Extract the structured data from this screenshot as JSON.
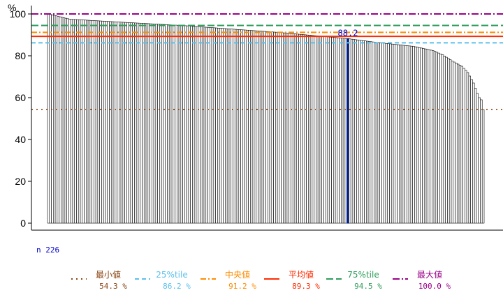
{
  "chart_data": {
    "type": "bar",
    "ylabel": "%",
    "ylim": [
      0,
      100
    ],
    "yticks": [
      0,
      20,
      40,
      60,
      80,
      100
    ],
    "n_label": "n 226",
    "n": 226,
    "sorted": "descending",
    "highlight": {
      "rank": 156,
      "value": 88.2,
      "label": "88.2"
    },
    "profile": [
      [
        1,
        100.0
      ],
      [
        12,
        97.5
      ],
      [
        40,
        96.0
      ],
      [
        70,
        94.5
      ],
      [
        100,
        92.5
      ],
      [
        120,
        91.2
      ],
      [
        156,
        88.2
      ],
      [
        170,
        86.5
      ],
      [
        180,
        85.5
      ],
      [
        190,
        84.5
      ],
      [
        200,
        82.5
      ],
      [
        205,
        80.5
      ],
      [
        210,
        77.5
      ],
      [
        215,
        75.0
      ],
      [
        218,
        72.0
      ],
      [
        221,
        67.0
      ],
      [
        223,
        62.0
      ],
      [
        224,
        60.0
      ],
      [
        225,
        59.0
      ],
      [
        226,
        54.3
      ]
    ],
    "reference_lines": [
      {
        "key": "min",
        "label": "最小値",
        "value": 54.3,
        "value_label": "54.3 %",
        "color": "#8b4513",
        "dash": "2,5"
      },
      {
        "key": "q1",
        "label": "25%tile",
        "value": 86.2,
        "value_label": "86.2 %",
        "color": "#5bc0eb",
        "dash": "6,4"
      },
      {
        "key": "median",
        "label": "中央値",
        "value": 91.2,
        "value_label": "91.2 %",
        "color": "#ff8c00",
        "dash": "8,3,2,3"
      },
      {
        "key": "mean",
        "label": "平均値",
        "value": 89.3,
        "value_label": "89.3 %",
        "color": "#ff2a00",
        "dash": ""
      },
      {
        "key": "q3",
        "label": "75%tile",
        "value": 94.5,
        "value_label": "94.5 %",
        "color": "#2e9d5b",
        "dash": "10,4"
      },
      {
        "key": "max",
        "label": "最大値",
        "value": 100.0,
        "value_label": "100.0 %",
        "color": "#990088",
        "dash": "10,3,2,3"
      }
    ],
    "colors": {
      "bar_fill": "#ffffff",
      "bar_stroke": "#000000",
      "highlight": "#001f8f",
      "annotation": "#0000cc",
      "axis": "#000000"
    }
  }
}
